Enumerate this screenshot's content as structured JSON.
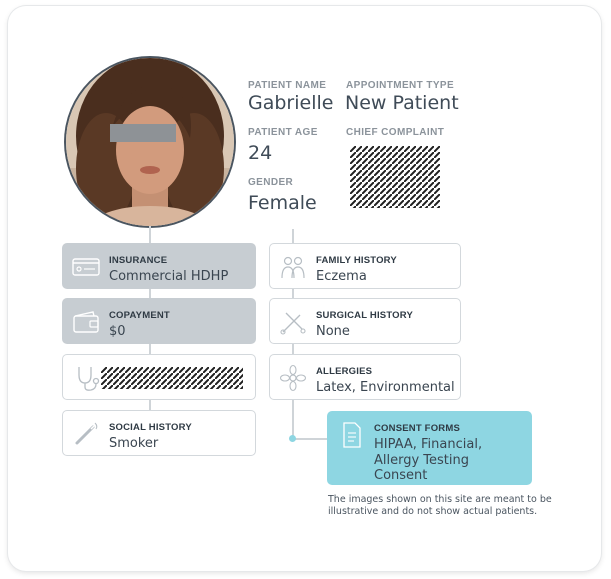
{
  "patient": {
    "name_label": "PATIENT NAME",
    "name": "Gabrielle",
    "appointment_label": "APPOINTMENT TYPE",
    "appointment": "New Patient",
    "age_label": "PATIENT AGE",
    "age": "24",
    "complaint_label": "CHIEF COMPLAINT",
    "gender_label": "GENDER",
    "gender": "Female"
  },
  "cards": {
    "insurance": {
      "title": "INSURANCE",
      "value": "Commercial HDHP",
      "icon": "insurance-card-icon"
    },
    "copayment": {
      "title": "COPAYMENT",
      "value": "$0",
      "icon": "wallet-icon"
    },
    "hidden": {
      "icon": "stethoscope-icon"
    },
    "social": {
      "title": "SOCIAL HISTORY",
      "value": "Smoker",
      "icon": "cigarette-icon"
    },
    "family": {
      "title": "FAMILY HISTORY",
      "value": "Eczema",
      "icon": "family-icon"
    },
    "surgical": {
      "title": "SURGICAL HISTORY",
      "value": "None",
      "icon": "surgical-tools-icon"
    },
    "allergies": {
      "title": "ALLERGIES",
      "value": "Latex, Environmental",
      "icon": "pollen-flower-icon"
    },
    "consent": {
      "title": "CONSENT FORMS",
      "value": "HIPAA, Financial, Allergy Testing Consent",
      "icon": "document-icon"
    }
  },
  "note": "The images shown on this site are meant to be illustrative and do not show actual patients.",
  "colors": {
    "accent": "#8ed6e2",
    "filled": "#c7cdd2",
    "text": "#3f4b57",
    "label": "#8b939b"
  }
}
